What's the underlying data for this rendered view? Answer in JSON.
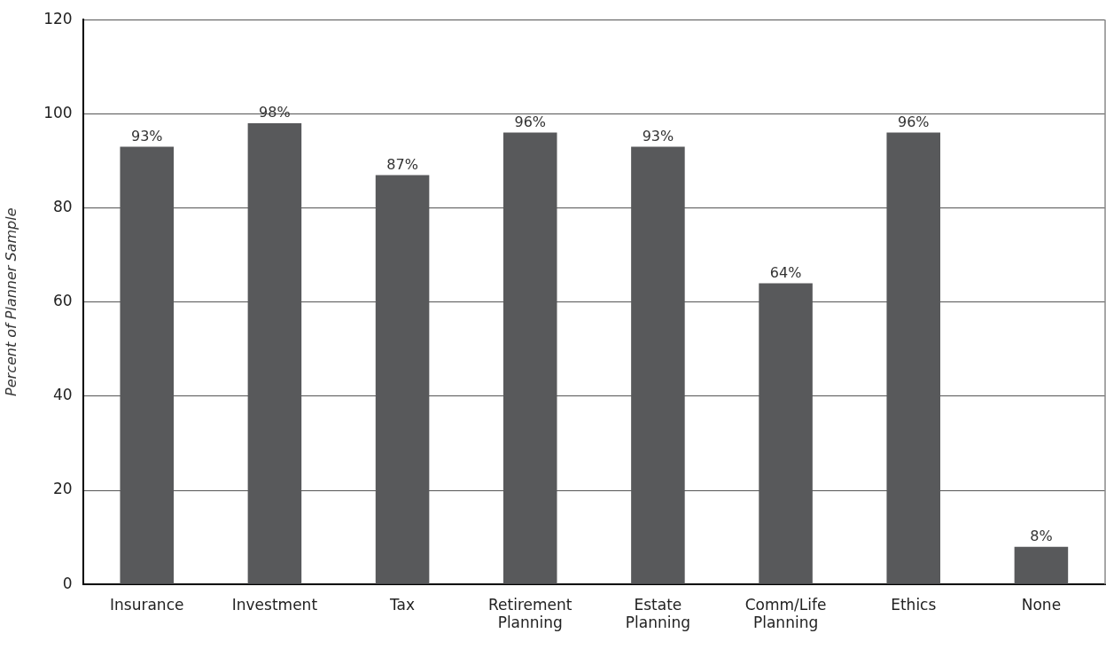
{
  "chart_data": {
    "type": "bar",
    "ylabel": "Percent of Planner Sample",
    "categories": [
      "Insurance",
      "Investment",
      "Tax",
      "Retirement Planning",
      "Estate Planning",
      "Comm/Life Planning",
      "Ethics",
      "None"
    ],
    "values": [
      93,
      98,
      87,
      96,
      93,
      64,
      96,
      8
    ],
    "value_labels": [
      "93%",
      "98%",
      "87%",
      "96%",
      "93%",
      "64%",
      "96%",
      "8%"
    ],
    "color": "#58595b",
    "ylim": [
      0,
      120
    ],
    "yticks": [
      0,
      20,
      40,
      60,
      80,
      100,
      120
    ],
    "grid": "y"
  }
}
